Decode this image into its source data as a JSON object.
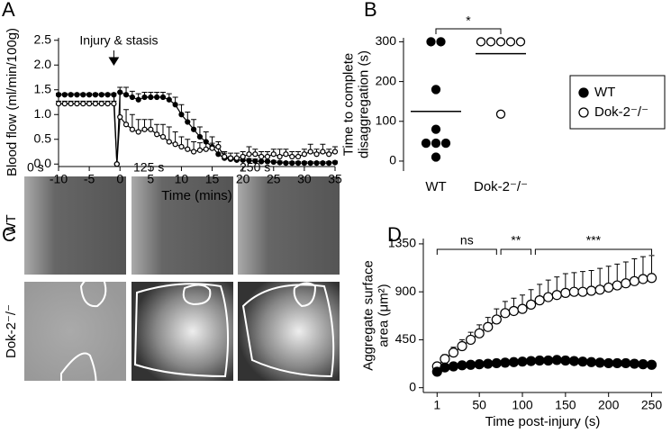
{
  "chart_data": [
    {
      "type": "line",
      "panel": "A",
      "xlabel": "Time (mins)",
      "ylabel": "Blood flow (ml/min/100g)",
      "annotation": {
        "text": "Injury & stasis",
        "x": -1
      },
      "x": [
        -10,
        -9,
        -8,
        -7,
        -6,
        -5,
        -4,
        -3,
        -2,
        -1,
        -0.5,
        0,
        1,
        2,
        3,
        4,
        5,
        6,
        7,
        8,
        9,
        10,
        11,
        12,
        13,
        14,
        15,
        16,
        17,
        18,
        19,
        20,
        21,
        22,
        23,
        24,
        25,
        26,
        27,
        28,
        29,
        30,
        31,
        32,
        33,
        34,
        35
      ],
      "series": [
        {
          "name": "WT",
          "color": "#000000",
          "fill": "#000000",
          "values": [
            1.4,
            1.4,
            1.4,
            1.4,
            1.4,
            1.4,
            1.4,
            1.4,
            1.4,
            1.4,
            0,
            1.45,
            1.4,
            1.35,
            1.3,
            1.35,
            1.35,
            1.35,
            1.35,
            1.3,
            1.2,
            1.0,
            0.85,
            0.7,
            0.55,
            0.45,
            0.35,
            0.2,
            0.12,
            0.1,
            0.08,
            0.08,
            0.07,
            0.06,
            0.05,
            0.05,
            0.04,
            0.03,
            0.02,
            0.02,
            0.02,
            0.02,
            0.02,
            0.02,
            0.02,
            0.02,
            0.03
          ],
          "errors": [
            0.03,
            0.03,
            0.03,
            0.03,
            0.03,
            0.03,
            0.03,
            0.03,
            0.03,
            0.03,
            0,
            0.1,
            0.15,
            0.12,
            0.12,
            0.1,
            0.1,
            0.1,
            0.1,
            0.12,
            0.15,
            0.2,
            0.2,
            0.2,
            0.2,
            0.2,
            0.2,
            0.15,
            0.1,
            0.05,
            0.05,
            0.05,
            0.04,
            0.04,
            0.03,
            0.03,
            0.03,
            0.03,
            0.03,
            0.03,
            0.03,
            0.03,
            0.03,
            0.03,
            0.03,
            0.03,
            0.03
          ]
        },
        {
          "name": "Dok-2⁻/⁻",
          "color": "#000000",
          "fill": "#ffffff",
          "values": [
            1.22,
            1.22,
            1.22,
            1.22,
            1.22,
            1.22,
            1.22,
            1.22,
            1.22,
            1.22,
            0,
            0.95,
            0.8,
            0.7,
            0.65,
            0.7,
            0.7,
            0.6,
            0.55,
            0.45,
            0.4,
            0.35,
            0.3,
            0.25,
            0.28,
            0.3,
            0.32,
            0.35,
            0.15,
            0.12,
            0.12,
            0.15,
            0.2,
            0.2,
            0.15,
            0.15,
            0.2,
            0.15,
            0.2,
            0.15,
            0.15,
            0.2,
            0.25,
            0.2,
            0.25,
            0.2,
            0.25
          ],
          "errors": [
            0.05,
            0.05,
            0.05,
            0.05,
            0.05,
            0.05,
            0.05,
            0.05,
            0.05,
            0.05,
            0,
            0.5,
            0.3,
            0.3,
            0.25,
            0.2,
            0.2,
            0.2,
            0.25,
            0.3,
            0.25,
            0.2,
            0.2,
            0.2,
            0.15,
            0.15,
            0.1,
            0.1,
            0.1,
            0.1,
            0.1,
            0.1,
            0.15,
            0.1,
            0.1,
            0.1,
            0.1,
            0.15,
            0.1,
            0.1,
            0.1,
            0.1,
            0.15,
            0.1,
            0.15,
            0.1,
            0.1
          ]
        }
      ],
      "xlim": [
        -10,
        35
      ],
      "xticks": [
        -10,
        -5,
        0,
        5,
        10,
        15,
        20,
        25,
        30,
        35
      ],
      "ylim": [
        -0.05,
        2.55
      ],
      "yticks": [
        {
          "value": 0,
          "label": "0.0"
        },
        0.5,
        {
          "value": 1,
          "label": "1.0"
        },
        1.5,
        {
          "value": 2,
          "label": "2.0"
        },
        2.5
      ]
    },
    {
      "type": "strip",
      "panel": "B",
      "ylabel": [
        "Time to complete",
        "disaggregation (s)"
      ],
      "categories": [
        "WT",
        "Dok-2⁻/⁻"
      ],
      "series": [
        {
          "name": "WT",
          "color": "#000000",
          "fill": "#000000",
          "values": [
            300,
            300,
            180,
            80,
            45,
            45,
            45,
            10
          ],
          "mean": 125
        },
        {
          "name": "Dok-2⁻/⁻",
          "color": "#000000",
          "fill": "#ffffff",
          "values": [
            300,
            300,
            300,
            300,
            300,
            118
          ],
          "mean": 270
        }
      ],
      "brackets": [
        {
          "label": "*"
        }
      ],
      "ylim": [
        -25,
        310
      ],
      "yticks": [
        0,
        100,
        200,
        300
      ]
    },
    {
      "type": "line",
      "panel": "D",
      "xlabel": "Time post-injury (s)",
      "ylabel": [
        "Aggregate surface",
        "area (μm²)"
      ],
      "x": [
        1,
        10,
        20,
        30,
        40,
        50,
        60,
        70,
        80,
        90,
        100,
        110,
        120,
        130,
        140,
        150,
        160,
        170,
        180,
        190,
        200,
        210,
        220,
        230,
        240,
        250
      ],
      "series": [
        {
          "name": "Dok-2⁻/⁻",
          "color": "#000000",
          "fill": "#ffffff",
          "values": [
            200,
            270,
            330,
            390,
            450,
            510,
            570,
            640,
            700,
            720,
            740,
            780,
            820,
            850,
            870,
            890,
            900,
            900,
            910,
            920,
            940,
            960,
            980,
            1000,
            1020,
            1030
          ],
          "errors": [
            30,
            40,
            50,
            60,
            70,
            80,
            90,
            100,
            110,
            120,
            130,
            140,
            150,
            160,
            170,
            180,
            180,
            190,
            190,
            200,
            200,
            200,
            200,
            210,
            210,
            210
          ]
        },
        {
          "name": "WT",
          "color": "#000000",
          "fill": "#000000",
          "values": [
            150,
            190,
            200,
            210,
            215,
            220,
            225,
            230,
            235,
            240,
            245,
            250,
            255,
            255,
            260,
            255,
            250,
            245,
            240,
            235,
            230,
            230,
            230,
            225,
            220,
            215
          ],
          "errors": [
            20,
            25,
            25,
            25,
            25,
            25,
            25,
            25,
            25,
            30,
            30,
            30,
            30,
            30,
            35,
            35,
            35,
            30,
            30,
            30,
            30,
            30,
            30,
            30,
            30,
            30
          ]
        }
      ],
      "brackets": [
        {
          "label": "ns",
          "x": [
            1,
            70
          ]
        },
        {
          "label": "**",
          "x": [
            75,
            110
          ]
        },
        {
          "label": "***",
          "x": [
            115,
            250
          ]
        }
      ],
      "xlim": [
        -15,
        262
      ],
      "xticks": [
        1,
        50,
        100,
        150,
        200,
        250
      ],
      "ylim": [
        -45,
        1400
      ],
      "yticks": [
        0,
        450,
        900,
        1350
      ]
    }
  ],
  "image_panel": {
    "panel": "C",
    "columns": [
      "0 s",
      "125 s",
      "250 s"
    ],
    "rows": [
      "WT",
      "Dok-2⁻/⁻"
    ]
  }
}
